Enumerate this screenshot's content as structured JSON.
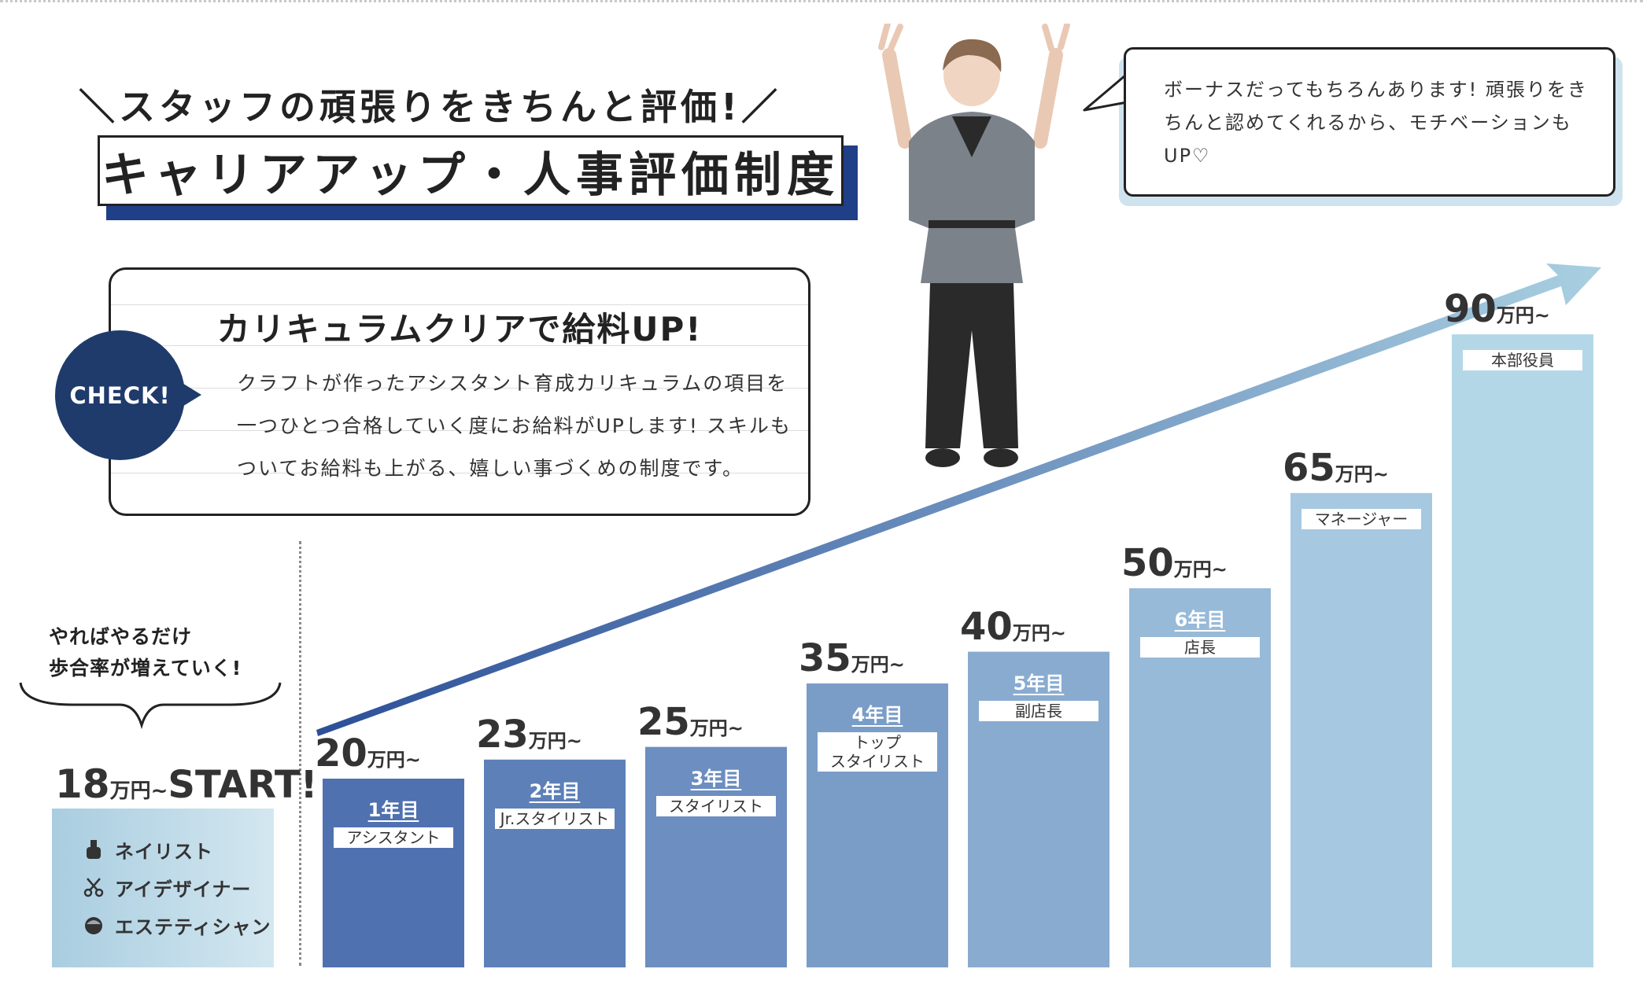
{
  "header": {
    "tagline": "スタッフの頑張りをきちんと評価!",
    "title": "キャリアアップ・人事評価制度"
  },
  "curriculum": {
    "badge": "CHECK!",
    "heading": "カリキュラムクリアで給料UP!",
    "body": "クラフトが作ったアシスタント育成カリキュラムの項目を一つひとつ合格していく度にお給料がUPします! スキルもついてお給料も上がる、嬉しい事づくめの制度です。"
  },
  "speech": {
    "text": "ボーナスだってもちろんあります! 頑張りをきちんと認めてくれるから、モチベーションもUP♡"
  },
  "start": {
    "note_line1": "やればやるだけ",
    "note_line2": "歩合率が増えていく!",
    "salary_number": "18",
    "salary_unit": "万円~",
    "salary_start": "START!",
    "roles": [
      {
        "label": "ネイリスト",
        "icon": "nail-polish-icon"
      },
      {
        "label": "アイデザイナー",
        "icon": "scissors-icon"
      },
      {
        "label": "エステティシャン",
        "icon": "face-icon"
      }
    ]
  },
  "colors": {
    "navy": "#1f3b6b",
    "title_shadow": "#1f3f86",
    "bar_start": "#4f71b0",
    "bar_end": "#b4d7e8"
  },
  "chart_data": {
    "type": "bar",
    "categories": [
      "アシスタント",
      "Jr.スタイリスト",
      "スタイリスト",
      "トップスタイリスト",
      "副店長",
      "店長",
      "マネージャー",
      "本部役員"
    ],
    "values": [
      20,
      23,
      25,
      35,
      40,
      50,
      65,
      90
    ],
    "value_suffix": "万円~",
    "years": [
      "1年目",
      "2年目",
      "3年目",
      "4年目",
      "5年目",
      "6年目",
      "",
      ""
    ],
    "role_labels": [
      [
        "アシスタント"
      ],
      [
        "Jr.スタイリスト"
      ],
      [
        "スタイリスト"
      ],
      [
        "トップ",
        "スタイリスト"
      ],
      [
        "副店長"
      ],
      [
        "店長"
      ],
      [
        "マネージャー"
      ],
      [
        "本部役員"
      ]
    ],
    "ylim": [
      0,
      90
    ],
    "grid": false
  }
}
